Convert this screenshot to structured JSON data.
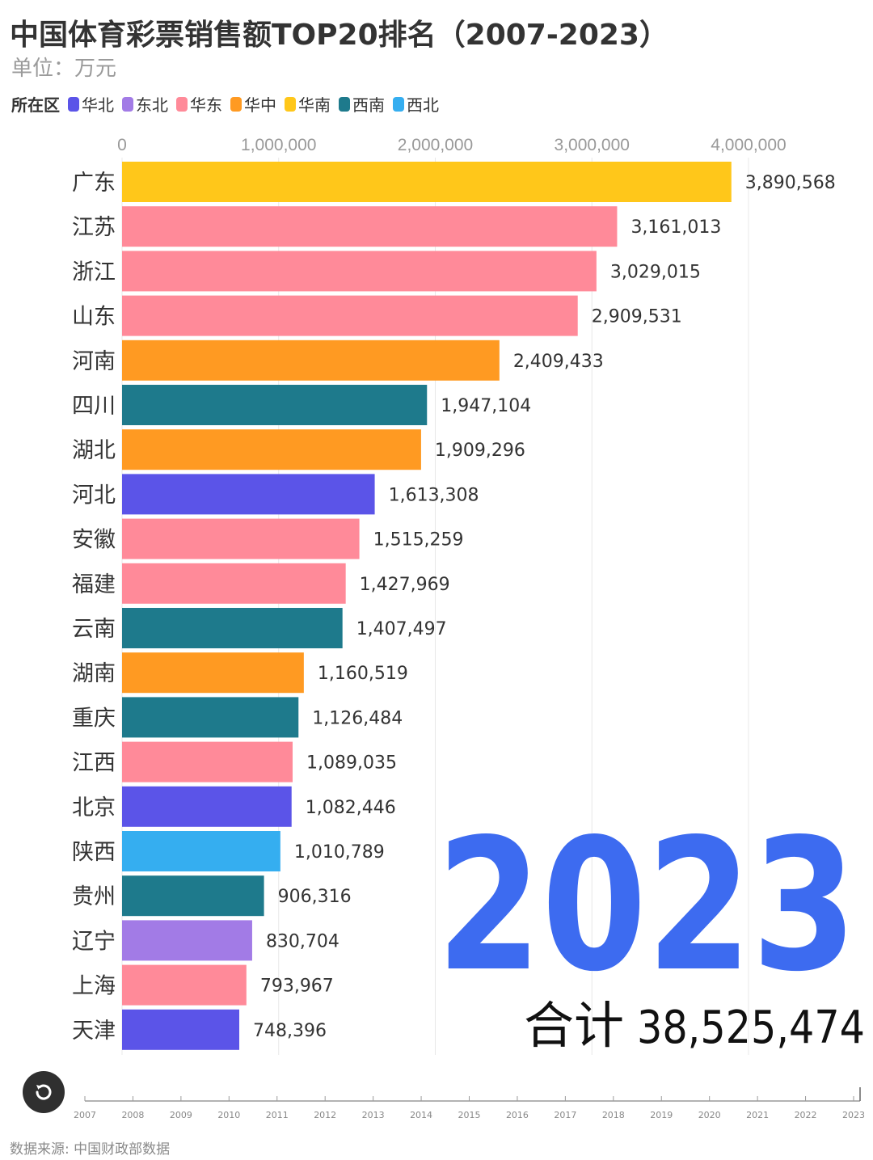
{
  "title": "中国体育彩票销售额TOP20排名（2007-2023）",
  "unit_label": "单位：万元",
  "legend": {
    "title": "所在区",
    "items": [
      {
        "name": "华北",
        "color": "#5b54e8"
      },
      {
        "name": "东北",
        "color": "#a27be6"
      },
      {
        "name": "华东",
        "color": "#ff8a99"
      },
      {
        "name": "华中",
        "color": "#ff9a22"
      },
      {
        "name": "华南",
        "color": "#ffc71a"
      },
      {
        "name": "西南",
        "color": "#1e7a8c"
      },
      {
        "name": "西北",
        "color": "#35aef0"
      }
    ]
  },
  "chart_data": {
    "type": "bar",
    "orientation": "horizontal",
    "x_ticks": [
      0,
      1000000,
      2000000,
      3000000,
      4000000
    ],
    "x_tick_labels": [
      "0",
      "1,000,000",
      "2,000,000",
      "3,000,000",
      "4,000,000"
    ],
    "xlim": [
      0,
      4000000
    ],
    "categories": [
      "广东",
      "江苏",
      "浙江",
      "山东",
      "河南",
      "四川",
      "湖北",
      "河北",
      "安徽",
      "福建",
      "云南",
      "湖南",
      "重庆",
      "江西",
      "北京",
      "陕西",
      "贵州",
      "辽宁",
      "上海",
      "天津"
    ],
    "values": [
      3890568,
      3161013,
      3029015,
      2909531,
      2409433,
      1947104,
      1909296,
      1613308,
      1515259,
      1427969,
      1407497,
      1160519,
      1126484,
      1089035,
      1082446,
      1010789,
      906316,
      830704,
      793967,
      748396
    ],
    "value_labels": [
      "3,890,568",
      "3,161,013",
      "3,029,015",
      "2,909,531",
      "2,409,433",
      "1,947,104",
      "1,909,296",
      "1,613,308",
      "1,515,259",
      "1,427,969",
      "1,407,497",
      "1,160,519",
      "1,126,484",
      "1,089,035",
      "1,082,446",
      "1,010,789",
      "906,316",
      "830,704",
      "793,967",
      "748,396"
    ],
    "regions": [
      "华南",
      "华东",
      "华东",
      "华东",
      "华中",
      "西南",
      "华中",
      "华北",
      "华东",
      "华东",
      "西南",
      "华中",
      "西南",
      "华东",
      "华北",
      "西北",
      "西南",
      "东北",
      "华东",
      "华北"
    ],
    "year": "2023",
    "total_label": "合计",
    "total_value": "38,525,474",
    "timeline": {
      "years": [
        "2007",
        "2008",
        "2009",
        "2010",
        "2011",
        "2012",
        "2013",
        "2014",
        "2015",
        "2016",
        "2017",
        "2018",
        "2019",
        "2020",
        "2021",
        "2022",
        "2023"
      ],
      "current": "2023"
    }
  },
  "colors": {
    "year_text": "#3d6bf0",
    "grid": "#e8e8e8",
    "tick_text": "#999999",
    "label_text": "#333333"
  },
  "controls": {
    "replay_icon": "replay-icon"
  },
  "source": "数据来源: 中国财政部数据"
}
